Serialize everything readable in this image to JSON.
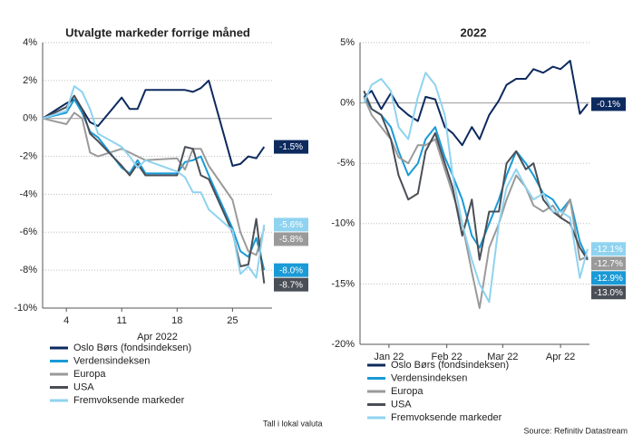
{
  "chart_data": [
    {
      "type": "line",
      "title": "Utvalgte markeder forrige måned",
      "xlabel": "Apr 2022",
      "x": [
        1,
        4,
        5,
        6,
        7,
        8,
        11,
        12,
        13,
        14,
        18,
        19,
        20,
        21,
        22,
        25,
        26,
        27,
        28,
        29
      ],
      "xlim": [
        1,
        30
      ],
      "xticks": [
        4,
        11,
        18,
        25
      ],
      "ylim": [
        -10,
        4
      ],
      "yticks": [
        {
          "value": -10,
          "label": "-10%"
        },
        {
          "value": -8,
          "label": "-8%"
        },
        {
          "value": -6,
          "label": "-6%"
        },
        {
          "value": -4,
          "label": "-4%"
        },
        {
          "value": -2,
          "label": "-2%"
        },
        {
          "value": 0,
          "label": "0%"
        },
        {
          "value": 2,
          "label": "2%"
        },
        {
          "value": 4,
          "label": "4%"
        }
      ],
      "grid": true,
      "series": [
        {
          "name": "Oslo Børs (fondsindeksen)",
          "color": "#0d2a5e",
          "end_label": "-1.5%",
          "values": [
            0,
            0.8,
            1.0,
            0.5,
            -0.2,
            -0.4,
            1.1,
            0.5,
            0.5,
            1.5,
            1.5,
            1.5,
            1.4,
            1.6,
            2.0,
            -2.5,
            -2.4,
            -2.0,
            -2.1,
            -1.5
          ]
        },
        {
          "name": "Verdensindeksen",
          "color": "#1a9ad6",
          "end_label": "-8.0%",
          "values": [
            0,
            0.3,
            1.0,
            0.3,
            -0.7,
            -1.0,
            -2.6,
            -2.9,
            -2.2,
            -2.9,
            -2.9,
            -2.3,
            -2.2,
            -2.0,
            -3.0,
            -5.8,
            -7.0,
            -7.3,
            -6.3,
            -8.0
          ]
        },
        {
          "name": "Europa",
          "color": "#9a9a9a",
          "end_label": "-5.8%",
          "values": [
            0,
            -0.3,
            0.3,
            0,
            -1.8,
            -2.0,
            -1.6,
            -1.8,
            -2.0,
            -2.2,
            -2.1,
            -2.7,
            -1.6,
            -1.6,
            -2.5,
            -4.3,
            -6.0,
            -7.0,
            -7.2,
            -5.8
          ]
        },
        {
          "name": "USA",
          "color": "#4a4f57",
          "end_label": "-8.7%",
          "values": [
            0,
            0.6,
            1.2,
            0.5,
            -0.8,
            -1.2,
            -2.5,
            -3.0,
            -2.4,
            -3.0,
            -3.0,
            -1.5,
            -1.6,
            -3.0,
            -3.2,
            -6.0,
            -7.8,
            -7.7,
            -5.3,
            -8.7
          ]
        },
        {
          "name": "Fremvoksende markeder",
          "color": "#8fd3f0",
          "end_label": "-5.6%",
          "values": [
            0,
            0.4,
            1.7,
            1.4,
            0.5,
            -0.8,
            -1.5,
            -2.0,
            -2.6,
            -2.2,
            -2.8,
            -3.1,
            -3.9,
            -3.9,
            -4.8,
            -5.9,
            -8.2,
            -7.8,
            -8.4,
            -5.6
          ]
        }
      ],
      "note": "Tall i lokal valuta"
    },
    {
      "type": "line",
      "title": "2022",
      "x": [
        3,
        7,
        12,
        17,
        21,
        26,
        31,
        35,
        40,
        45,
        49,
        54,
        59,
        63,
        68,
        73,
        77,
        82,
        87,
        91,
        96,
        101,
        105,
        110,
        115,
        119
      ],
      "xlim": [
        1,
        120
      ],
      "xticks": [
        {
          "value": 16,
          "label": "Jan 22"
        },
        {
          "value": 46,
          "label": "Feb 22"
        },
        {
          "value": 75,
          "label": "Mar 22"
        },
        {
          "value": 105,
          "label": "Apr 22"
        }
      ],
      "ylim": [
        -20,
        5
      ],
      "yticks": [
        {
          "value": -20,
          "label": "-20%"
        },
        {
          "value": -15,
          "label": "-15%"
        },
        {
          "value": -10,
          "label": "-10%"
        },
        {
          "value": -5,
          "label": "-5%"
        },
        {
          "value": 0,
          "label": "0%"
        },
        {
          "value": 5,
          "label": "5%"
        }
      ],
      "grid": true,
      "series": [
        {
          "name": "Oslo Børs (fondsindeksen)",
          "color": "#0d2a5e",
          "end_label": "-0.1%",
          "values": [
            0.5,
            1.0,
            -0.5,
            0.8,
            -0.3,
            -1.0,
            -1.5,
            0.5,
            0.3,
            -2.0,
            -2.5,
            -3.5,
            -2.0,
            -3.0,
            -1.0,
            0.2,
            1.5,
            2.0,
            2.0,
            2.8,
            2.5,
            3.0,
            2.8,
            3.5,
            -0.9,
            -0.1
          ]
        },
        {
          "name": "Verdensindeksen",
          "color": "#1a9ad6",
          "end_label": "-12.9%",
          "values": [
            0.5,
            -0.5,
            -1.0,
            -2.0,
            -4.0,
            -6.0,
            -5.0,
            -3.0,
            -2.0,
            -4.5,
            -6.0,
            -8.0,
            -11.0,
            -12.0,
            -10.0,
            -8.0,
            -6.0,
            -4.0,
            -5.0,
            -6.0,
            -7.5,
            -8.0,
            -9.0,
            -8.0,
            -11.5,
            -12.9
          ]
        },
        {
          "name": "Europa",
          "color": "#9a9a9a",
          "end_label": "-12.7%",
          "values": [
            0.5,
            -1.0,
            -2.0,
            -3.0,
            -4.5,
            -5.0,
            -3.5,
            -3.5,
            -3.0,
            -5.5,
            -7.5,
            -10.0,
            -14.0,
            -17.0,
            -12.0,
            -10.0,
            -8.0,
            -6.0,
            -7.0,
            -8.5,
            -9.0,
            -8.5,
            -9.5,
            -8.0,
            -13.0,
            -12.7
          ]
        },
        {
          "name": "USA",
          "color": "#4a4f57",
          "end_label": "-13.0%",
          "values": [
            1.0,
            -0.5,
            -1.0,
            -3.0,
            -6.0,
            -8.0,
            -7.5,
            -4.0,
            -2.5,
            -5.0,
            -7.0,
            -11.0,
            -8.0,
            -13.0,
            -9.0,
            -9.0,
            -5.0,
            -4.0,
            -5.5,
            -5.0,
            -8.0,
            -9.0,
            -9.5,
            -10.0,
            -12.0,
            -13.0
          ]
        },
        {
          "name": "Fremvoksende markeder",
          "color": "#8fd3f0",
          "end_label": "-12.1%",
          "values": [
            0,
            1.5,
            2.0,
            1.0,
            -2.0,
            -3.0,
            0.5,
            2.5,
            1.5,
            -1.0,
            -6.0,
            -10.0,
            -13.0,
            -15.0,
            -16.5,
            -10.0,
            -7.0,
            -5.5,
            -7.0,
            -8.0,
            -7.5,
            -9.0,
            -9.0,
            -9.5,
            -14.5,
            -12.1
          ]
        }
      ],
      "note": "Source: Refinitiv Datastream"
    }
  ]
}
